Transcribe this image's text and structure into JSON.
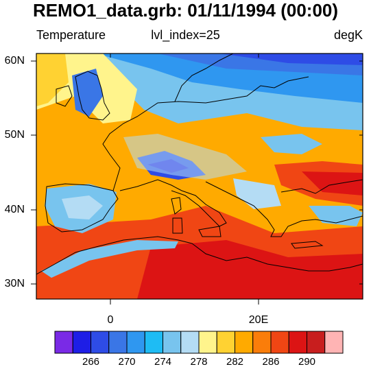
{
  "title": "REMO1_data.grb: 01/11/1994 (00:00)",
  "subtitles": {
    "left": "Temperature",
    "center": "lvl_index=25",
    "right": "degK"
  },
  "lat_labels": [
    "60N",
    "50N",
    "40N",
    "30N"
  ],
  "lon_labels": [
    "0",
    "20E"
  ],
  "map_extent": {
    "lon_min": -10,
    "lon_max": 34,
    "lat_min": 28,
    "lat_max": 62
  },
  "colorbar": {
    "colors": [
      "#7a2ae6",
      "#1e1ee6",
      "#2e4ce6",
      "#3a76e6",
      "#2f97f0",
      "#1ebcf4",
      "#78c4ee",
      "#b4dcf4",
      "#fff48c",
      "#ffd232",
      "#ffaa00",
      "#fa7d0a",
      "#f04614",
      "#dc1414",
      "#c81e1e",
      "#ffb4b4"
    ],
    "tick_labels": [
      "266",
      "270",
      "274",
      "278",
      "282",
      "286",
      "290"
    ]
  }
}
